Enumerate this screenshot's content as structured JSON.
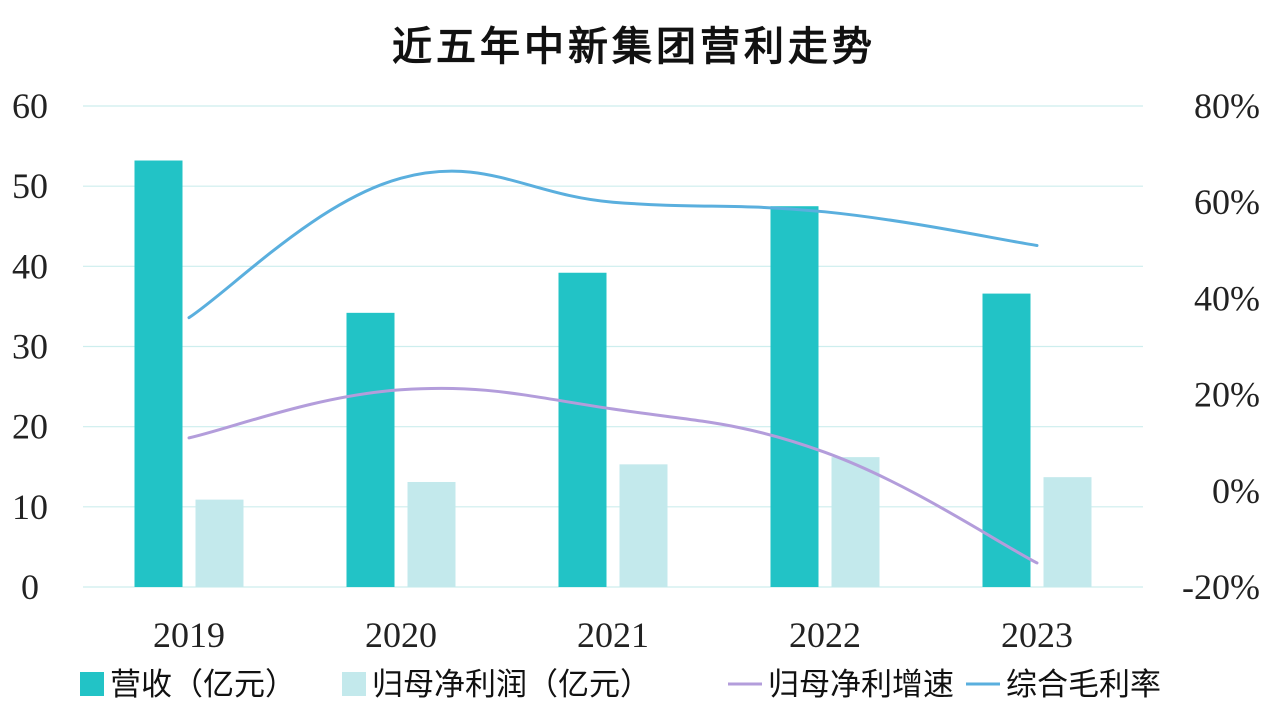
{
  "chart_data": {
    "type": "bar",
    "title": "近五年中新集团营利走势",
    "categories": [
      "2019",
      "2020",
      "2021",
      "2022",
      "2023"
    ],
    "y_left": {
      "min": 0,
      "max": 60,
      "ticks": [
        "0",
        "10",
        "20",
        "30",
        "40",
        "50",
        "60"
      ]
    },
    "y_right": {
      "min": -20,
      "max": 80,
      "ticks": [
        "-20%",
        "0%",
        "20%",
        "40%",
        "60%",
        "80%"
      ]
    },
    "grid": true,
    "legend_position": "bottom",
    "series": [
      {
        "name": "营收（亿元）",
        "type": "bar",
        "axis": "left",
        "color": "#22c3c6",
        "values": [
          53.2,
          34.2,
          39.2,
          47.5,
          36.6
        ]
      },
      {
        "name": "归母净利润（亿元）",
        "type": "bar",
        "axis": "left",
        "color": "#c3e9ec",
        "values": [
          10.9,
          13.1,
          15.3,
          16.2,
          13.7
        ]
      },
      {
        "name": "归母净利增速",
        "type": "line",
        "axis": "right",
        "color": "#b39ddb",
        "values": [
          11,
          21,
          17,
          8,
          -15
        ]
      },
      {
        "name": "综合毛利率",
        "type": "line",
        "axis": "right",
        "color": "#5aafde",
        "values": [
          36,
          65,
          60,
          58,
          51
        ]
      }
    ]
  }
}
